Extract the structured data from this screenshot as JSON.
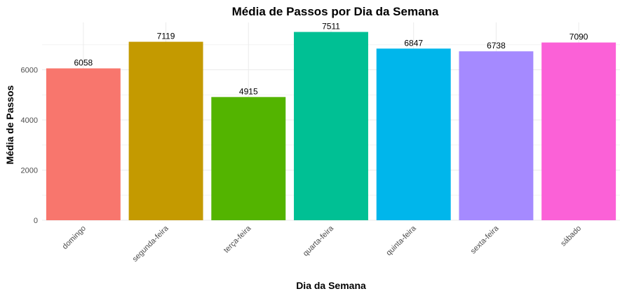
{
  "chart_data": {
    "type": "bar",
    "title": "Média de Passos por Dia da Semana",
    "xlabel": "Dia da Semana",
    "ylabel": "Média de Passos",
    "categories": [
      "domingo",
      "segunda-feira",
      "terça-feira",
      "quarta-feira",
      "quinta-feira",
      "sexta-feira",
      "sábado"
    ],
    "values": [
      6058,
      7119,
      4915,
      7511,
      6847,
      6738,
      7090
    ],
    "colors": [
      "#F8766D",
      "#C49A00",
      "#53B400",
      "#00C094",
      "#00B6EB",
      "#A58AFF",
      "#FB61D7"
    ],
    "yticks": [
      0,
      2000,
      4000,
      6000
    ],
    "ylim": [
      0,
      7890
    ],
    "grid": true,
    "legend": "none"
  }
}
